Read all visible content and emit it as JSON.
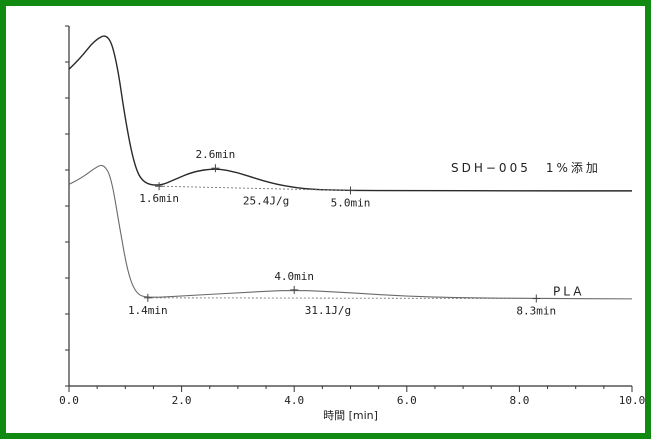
{
  "frame_color": "#118a11",
  "chart_data": {
    "type": "line",
    "xlabel": "時間 [min]",
    "xlim": [
      0.0,
      10.0
    ],
    "x_ticks": [
      "0.0",
      "2.0",
      "4.0",
      "6.0",
      "8.0",
      "10.0"
    ],
    "ylabel": "",
    "grid": false,
    "series": [
      {
        "name": "SDH−005　1%添加",
        "points": [
          [
            0.0,
            88
          ],
          [
            0.2,
            91
          ],
          [
            0.45,
            96
          ],
          [
            0.7,
            98
          ],
          [
            0.85,
            90
          ],
          [
            1.0,
            74
          ],
          [
            1.15,
            62
          ],
          [
            1.3,
            56.5
          ],
          [
            1.6,
            55.5
          ],
          [
            1.9,
            57.5
          ],
          [
            2.2,
            59.5
          ],
          [
            2.6,
            60.5
          ],
          [
            3.0,
            59.3
          ],
          [
            3.4,
            57.2
          ],
          [
            3.8,
            55.6
          ],
          [
            4.3,
            54.6
          ],
          [
            5.0,
            54.3
          ],
          [
            6.0,
            54.3
          ],
          [
            8.0,
            54.2
          ],
          [
            10.0,
            54.2
          ]
        ],
        "baseline": [
          [
            1.6,
            55.5
          ],
          [
            5.0,
            54.3
          ]
        ],
        "annotations": [
          {
            "x": 2.6,
            "y": 60.5,
            "text": "2.6min",
            "pos": "above"
          },
          {
            "x": 1.6,
            "y": 55.5,
            "text": "1.6min",
            "pos": "below"
          },
          {
            "x": 3.5,
            "y": 54.9,
            "text": "25.4J/g",
            "pos": "below"
          },
          {
            "x": 5.0,
            "y": 54.3,
            "text": "5.0min",
            "pos": "below"
          }
        ]
      },
      {
        "name": "PLA",
        "points": [
          [
            0.0,
            56
          ],
          [
            0.2,
            57.5
          ],
          [
            0.5,
            61
          ],
          [
            0.62,
            61.5
          ],
          [
            0.75,
            58
          ],
          [
            0.9,
            44
          ],
          [
            1.05,
            31
          ],
          [
            1.2,
            25.5
          ],
          [
            1.4,
            24.5
          ],
          [
            2.0,
            25
          ],
          [
            3.0,
            25.9
          ],
          [
            4.0,
            26.7
          ],
          [
            5.0,
            25.9
          ],
          [
            6.0,
            24.9
          ],
          [
            7.0,
            24.5
          ],
          [
            8.3,
            24.3
          ],
          [
            10.0,
            24.2
          ]
        ],
        "baseline": [
          [
            1.4,
            24.5
          ],
          [
            8.3,
            24.3
          ]
        ],
        "annotations": [
          {
            "x": 4.0,
            "y": 26.7,
            "text": "4.0min",
            "pos": "above"
          },
          {
            "x": 1.4,
            "y": 24.5,
            "text": "1.4min",
            "pos": "below"
          },
          {
            "x": 4.6,
            "y": 24.4,
            "text": "31.1J/g",
            "pos": "below"
          },
          {
            "x": 8.3,
            "y": 24.3,
            "text": "8.3min",
            "pos": "below"
          }
        ]
      }
    ]
  }
}
